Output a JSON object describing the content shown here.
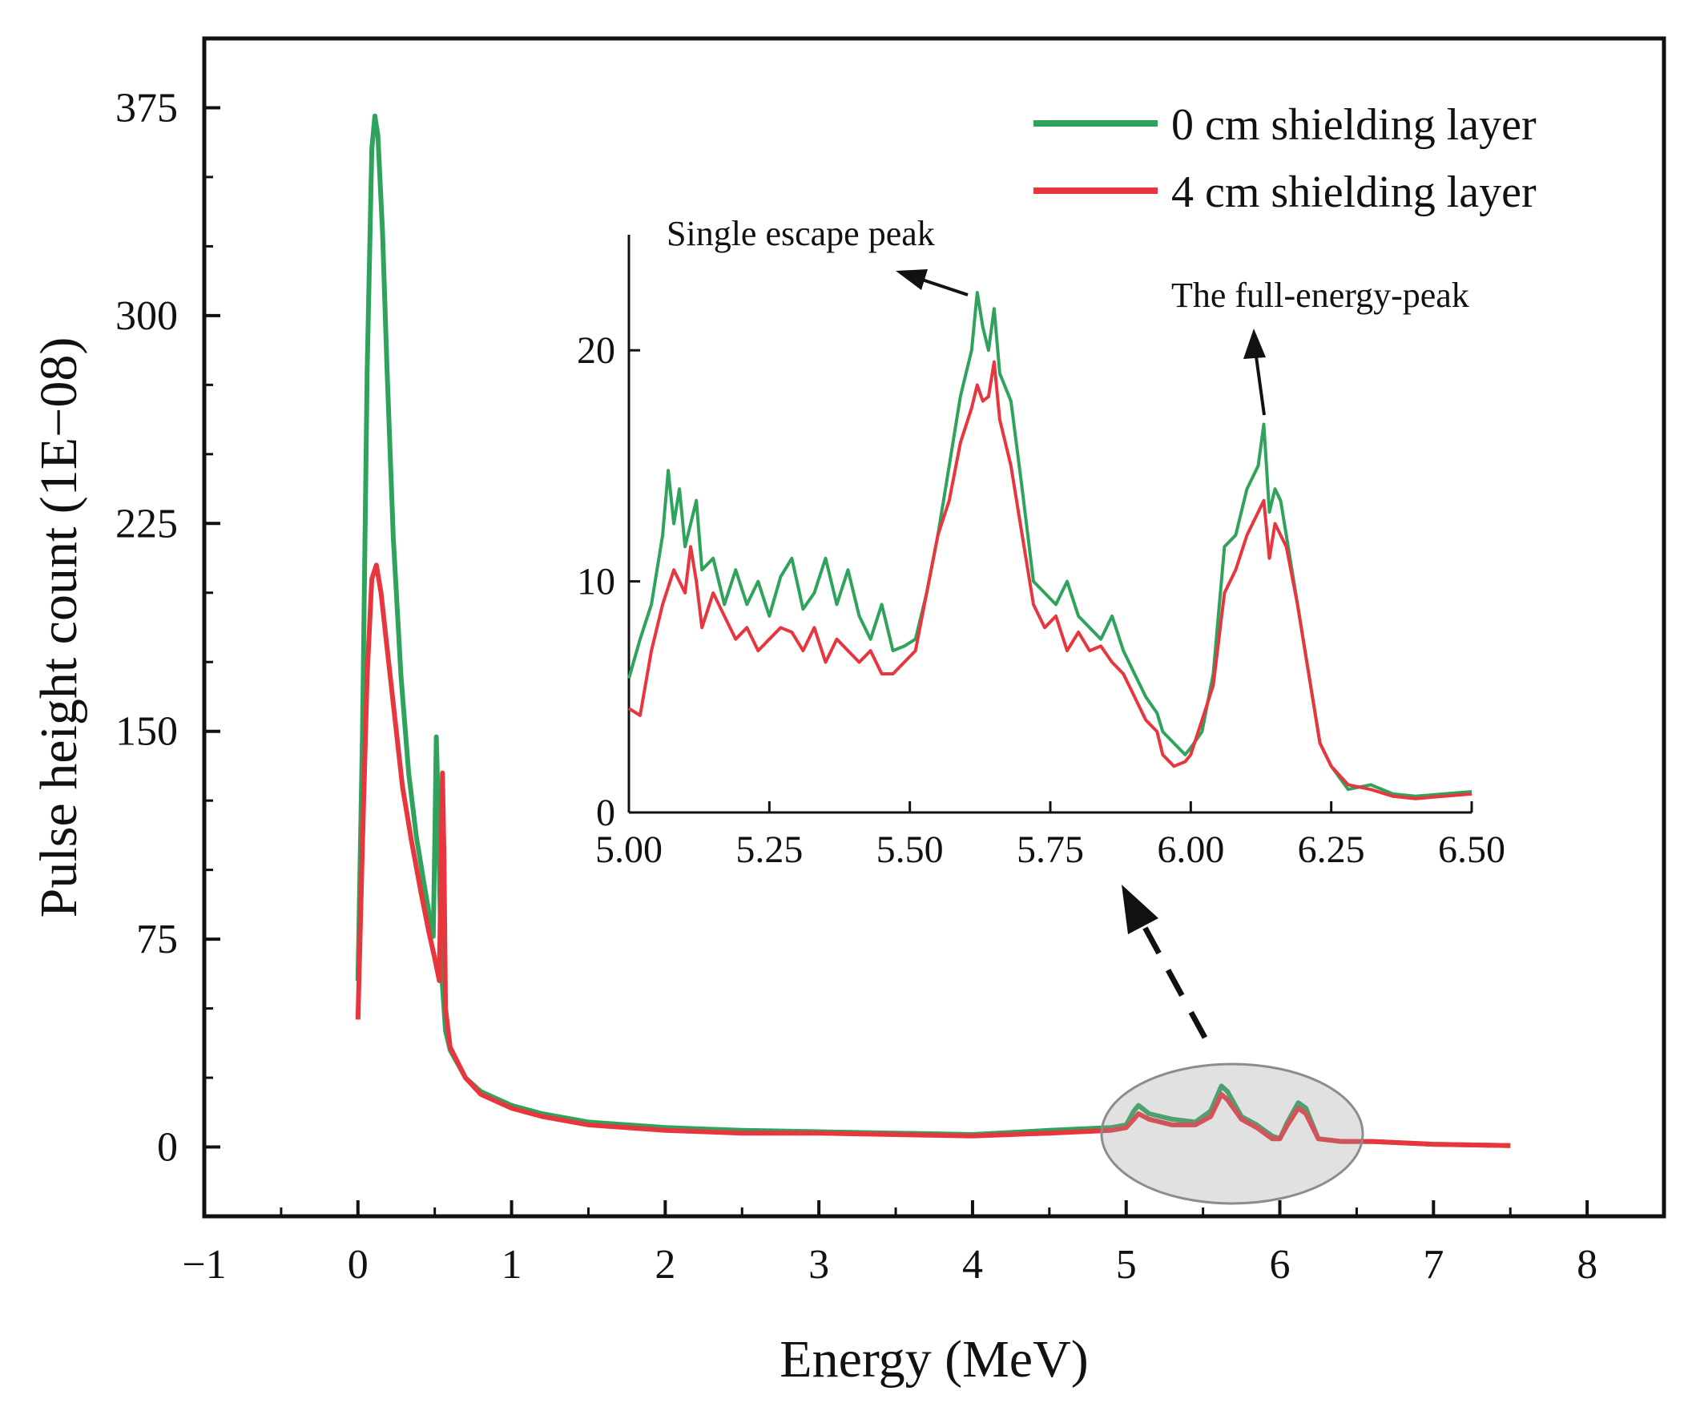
{
  "chart_data": [
    {
      "id": "main",
      "type": "line",
      "title": "",
      "xlabel": "Energy (MeV)",
      "ylabel": "Pulse height count (1E−08)",
      "xlim": [
        -1,
        8.5
      ],
      "ylim": [
        -25,
        400
      ],
      "xticks": [
        -1,
        0,
        1,
        2,
        3,
        4,
        5,
        6,
        7,
        8
      ],
      "xtick_labels": [
        "−1",
        "0",
        "1",
        "2",
        "3",
        "4",
        "5",
        "6",
        "7",
        "8"
      ],
      "yticks": [
        0,
        75,
        150,
        225,
        300,
        375
      ],
      "ytick_labels": [
        "0",
        "75",
        "150",
        "225",
        "300",
        "375"
      ],
      "legend_position": "top-right",
      "series": [
        {
          "name": "0 cm shielding layer",
          "color": "#2fa35c",
          "points": [
            [
              0.0,
              60
            ],
            [
              0.03,
              150
            ],
            [
              0.06,
              280
            ],
            [
              0.09,
              360
            ],
            [
              0.11,
              372
            ],
            [
              0.13,
              365
            ],
            [
              0.16,
              330
            ],
            [
              0.19,
              280
            ],
            [
              0.23,
              220
            ],
            [
              0.28,
              170
            ],
            [
              0.33,
              135
            ],
            [
              0.38,
              112
            ],
            [
              0.43,
              95
            ],
            [
              0.47,
              82
            ],
            [
              0.49,
              76
            ],
            [
              0.5,
              110
            ],
            [
              0.51,
              148
            ],
            [
              0.52,
              128
            ],
            [
              0.54,
              72
            ],
            [
              0.55,
              58
            ],
            [
              0.57,
              42
            ],
            [
              0.6,
              35
            ],
            [
              0.7,
              25
            ],
            [
              0.8,
              20
            ],
            [
              1.0,
              15
            ],
            [
              1.2,
              12
            ],
            [
              1.5,
              9
            ],
            [
              2.0,
              7
            ],
            [
              2.5,
              6
            ],
            [
              3.0,
              5.5
            ],
            [
              3.5,
              5
            ],
            [
              4.0,
              4.5
            ],
            [
              4.5,
              6
            ],
            [
              4.9,
              7
            ],
            [
              5.0,
              8
            ],
            [
              5.05,
              13
            ],
            [
              5.08,
              15
            ],
            [
              5.15,
              12
            ],
            [
              5.3,
              10
            ],
            [
              5.45,
              9
            ],
            [
              5.55,
              13
            ],
            [
              5.62,
              22
            ],
            [
              5.66,
              20
            ],
            [
              5.75,
              11
            ],
            [
              5.85,
              8
            ],
            [
              5.95,
              4
            ],
            [
              6.0,
              3
            ],
            [
              6.05,
              9
            ],
            [
              6.12,
              16
            ],
            [
              6.17,
              14
            ],
            [
              6.25,
              3
            ],
            [
              6.4,
              2
            ],
            [
              6.6,
              2
            ],
            [
              7.0,
              1
            ],
            [
              7.5,
              0.5
            ]
          ]
        },
        {
          "name": "4 cm shielding layer",
          "color": "#e8363e",
          "points": [
            [
              0.0,
              46
            ],
            [
              0.03,
              110
            ],
            [
              0.06,
              170
            ],
            [
              0.09,
              205
            ],
            [
              0.12,
              210
            ],
            [
              0.15,
              200
            ],
            [
              0.19,
              180
            ],
            [
              0.24,
              155
            ],
            [
              0.29,
              130
            ],
            [
              0.35,
              110
            ],
            [
              0.41,
              92
            ],
            [
              0.46,
              78
            ],
            [
              0.5,
              68
            ],
            [
              0.53,
              60
            ],
            [
              0.54,
              100
            ],
            [
              0.55,
              135
            ],
            [
              0.56,
              105
            ],
            [
              0.57,
              50
            ],
            [
              0.6,
              36
            ],
            [
              0.7,
              25
            ],
            [
              0.8,
              19
            ],
            [
              1.0,
              14
            ],
            [
              1.2,
              11
            ],
            [
              1.5,
              8
            ],
            [
              2.0,
              6
            ],
            [
              2.5,
              5
            ],
            [
              3.0,
              5
            ],
            [
              3.5,
              4.5
            ],
            [
              4.0,
              4
            ],
            [
              4.5,
              5
            ],
            [
              4.9,
              6
            ],
            [
              5.0,
              7
            ],
            [
              5.05,
              10
            ],
            [
              5.08,
              12
            ],
            [
              5.15,
              10
            ],
            [
              5.3,
              8
            ],
            [
              5.45,
              8
            ],
            [
              5.55,
              11
            ],
            [
              5.62,
              19
            ],
            [
              5.66,
              17
            ],
            [
              5.75,
              10
            ],
            [
              5.85,
              7
            ],
            [
              5.95,
              3
            ],
            [
              6.0,
              3
            ],
            [
              6.05,
              8
            ],
            [
              6.12,
              14
            ],
            [
              6.17,
              12
            ],
            [
              6.25,
              3
            ],
            [
              6.4,
              2
            ],
            [
              6.6,
              2
            ],
            [
              7.0,
              1
            ],
            [
              7.5,
              0.5
            ]
          ]
        }
      ]
    },
    {
      "id": "inset",
      "type": "line",
      "title": "",
      "xlabel": "",
      "ylabel": "",
      "xlim": [
        5.0,
        6.5
      ],
      "ylim": [
        0,
        25
      ],
      "xticks": [
        5.0,
        5.25,
        5.5,
        5.75,
        6.0,
        6.25,
        6.5
      ],
      "xtick_labels": [
        "5.00",
        "5.25",
        "5.50",
        "5.75",
        "6.00",
        "6.25",
        "6.50"
      ],
      "yticks": [
        0,
        10,
        20
      ],
      "ytick_labels": [
        "0",
        "10",
        "20"
      ],
      "annotations": [
        {
          "text": "Single escape peak",
          "x": 5.62,
          "y": 22.5
        },
        {
          "text": "The full-energy-peak",
          "x": 6.13,
          "y": 17
        }
      ],
      "series": [
        {
          "name": "0 cm shielding layer",
          "color": "#2fa35c",
          "points": [
            [
              5.0,
              5.8
            ],
            [
              5.02,
              7.5
            ],
            [
              5.04,
              9
            ],
            [
              5.06,
              12
            ],
            [
              5.07,
              14.8
            ],
            [
              5.08,
              12.5
            ],
            [
              5.09,
              14
            ],
            [
              5.1,
              11.5
            ],
            [
              5.12,
              13.5
            ],
            [
              5.13,
              10.5
            ],
            [
              5.15,
              11
            ],
            [
              5.17,
              9
            ],
            [
              5.19,
              10.5
            ],
            [
              5.21,
              9
            ],
            [
              5.23,
              10
            ],
            [
              5.25,
              8.5
            ],
            [
              5.27,
              10.2
            ],
            [
              5.29,
              11
            ],
            [
              5.31,
              8.8
            ],
            [
              5.33,
              9.5
            ],
            [
              5.35,
              11
            ],
            [
              5.37,
              9
            ],
            [
              5.39,
              10.5
            ],
            [
              5.41,
              8.5
            ],
            [
              5.43,
              7.5
            ],
            [
              5.45,
              9
            ],
            [
              5.47,
              7
            ],
            [
              5.49,
              7.2
            ],
            [
              5.51,
              7.5
            ],
            [
              5.53,
              9.5
            ],
            [
              5.55,
              12
            ],
            [
              5.57,
              15
            ],
            [
              5.59,
              18
            ],
            [
              5.61,
              20
            ],
            [
              5.62,
              22.5
            ],
            [
              5.63,
              21
            ],
            [
              5.64,
              20
            ],
            [
              5.65,
              21.8
            ],
            [
              5.66,
              19
            ],
            [
              5.68,
              17.8
            ],
            [
              5.7,
              14
            ],
            [
              5.72,
              10
            ],
            [
              5.74,
              9.5
            ],
            [
              5.76,
              9
            ],
            [
              5.78,
              10
            ],
            [
              5.8,
              8.5
            ],
            [
              5.82,
              8
            ],
            [
              5.84,
              7.5
            ],
            [
              5.86,
              8.5
            ],
            [
              5.88,
              7
            ],
            [
              5.9,
              6
            ],
            [
              5.92,
              5
            ],
            [
              5.94,
              4.3
            ],
            [
              5.95,
              3.5
            ],
            [
              5.97,
              3
            ],
            [
              5.99,
              2.5
            ],
            [
              6.0,
              2.8
            ],
            [
              6.02,
              3.5
            ],
            [
              6.04,
              6
            ],
            [
              6.06,
              11.5
            ],
            [
              6.08,
              12
            ],
            [
              6.1,
              14
            ],
            [
              6.12,
              15
            ],
            [
              6.13,
              16.8
            ],
            [
              6.14,
              13
            ],
            [
              6.15,
              14
            ],
            [
              6.16,
              13.5
            ],
            [
              6.17,
              12
            ],
            [
              6.19,
              9
            ],
            [
              6.21,
              6
            ],
            [
              6.23,
              3
            ],
            [
              6.25,
              2
            ],
            [
              6.28,
              1
            ],
            [
              6.32,
              1.2
            ],
            [
              6.36,
              0.8
            ],
            [
              6.4,
              0.7
            ],
            [
              6.45,
              0.8
            ],
            [
              6.5,
              0.9
            ]
          ]
        },
        {
          "name": "4 cm shielding layer",
          "color": "#e8363e",
          "points": [
            [
              5.0,
              4.5
            ],
            [
              5.02,
              4.2
            ],
            [
              5.04,
              7
            ],
            [
              5.06,
              9
            ],
            [
              5.08,
              10.5
            ],
            [
              5.1,
              9.5
            ],
            [
              5.11,
              11.5
            ],
            [
              5.12,
              10
            ],
            [
              5.13,
              8
            ],
            [
              5.15,
              9.5
            ],
            [
              5.17,
              8.5
            ],
            [
              5.19,
              7.5
            ],
            [
              5.21,
              8
            ],
            [
              5.23,
              7
            ],
            [
              5.25,
              7.5
            ],
            [
              5.27,
              8
            ],
            [
              5.29,
              7.8
            ],
            [
              5.31,
              7
            ],
            [
              5.33,
              8
            ],
            [
              5.35,
              6.5
            ],
            [
              5.37,
              7.5
            ],
            [
              5.39,
              7
            ],
            [
              5.41,
              6.5
            ],
            [
              5.43,
              7
            ],
            [
              5.45,
              6
            ],
            [
              5.47,
              6
            ],
            [
              5.49,
              6.5
            ],
            [
              5.51,
              7
            ],
            [
              5.53,
              9.5
            ],
            [
              5.55,
              12
            ],
            [
              5.57,
              13.5
            ],
            [
              5.59,
              16
            ],
            [
              5.61,
              17.5
            ],
            [
              5.62,
              18.5
            ],
            [
              5.63,
              17.8
            ],
            [
              5.64,
              18
            ],
            [
              5.65,
              19.5
            ],
            [
              5.66,
              17
            ],
            [
              5.68,
              15
            ],
            [
              5.7,
              12
            ],
            [
              5.72,
              9
            ],
            [
              5.74,
              8
            ],
            [
              5.76,
              8.5
            ],
            [
              5.78,
              7
            ],
            [
              5.8,
              7.8
            ],
            [
              5.82,
              7
            ],
            [
              5.84,
              7.2
            ],
            [
              5.86,
              6.5
            ],
            [
              5.88,
              6
            ],
            [
              5.9,
              5
            ],
            [
              5.92,
              4
            ],
            [
              5.94,
              3.5
            ],
            [
              5.95,
              2.5
            ],
            [
              5.97,
              2
            ],
            [
              5.99,
              2.2
            ],
            [
              6.0,
              2.5
            ],
            [
              6.02,
              4
            ],
            [
              6.04,
              5.5
            ],
            [
              6.06,
              9.5
            ],
            [
              6.08,
              10.5
            ],
            [
              6.1,
              12
            ],
            [
              6.12,
              13
            ],
            [
              6.13,
              13.5
            ],
            [
              6.14,
              11
            ],
            [
              6.15,
              12.5
            ],
            [
              6.16,
              12
            ],
            [
              6.17,
              11.5
            ],
            [
              6.19,
              9
            ],
            [
              6.21,
              6
            ],
            [
              6.23,
              3
            ],
            [
              6.25,
              2
            ],
            [
              6.28,
              1.2
            ],
            [
              6.32,
              1
            ],
            [
              6.36,
              0.7
            ],
            [
              6.4,
              0.6
            ],
            [
              6.45,
              0.7
            ],
            [
              6.5,
              0.8
            ]
          ]
        }
      ]
    }
  ]
}
